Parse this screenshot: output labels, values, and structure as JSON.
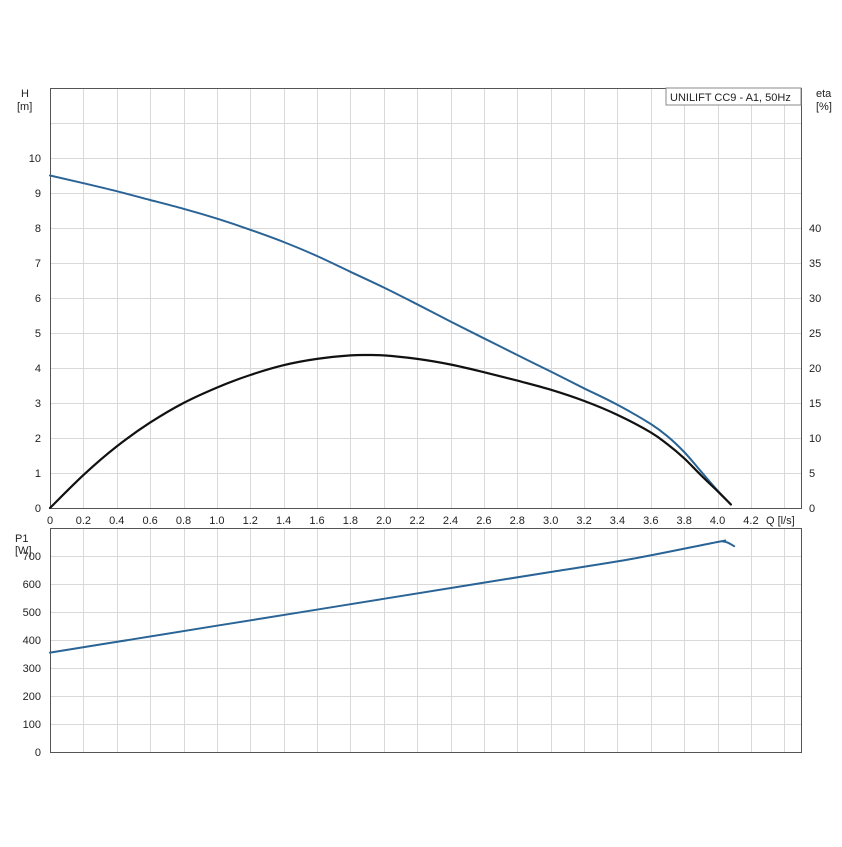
{
  "chart_data": [
    {
      "type": "line",
      "legend": "UNILIFT CC9 - A1, 50Hz",
      "legend_position": "top-right",
      "grid": true,
      "xlabel": "Q [l/s]",
      "xlim": [
        0,
        4.5
      ],
      "x_ticks": [
        "0",
        "0.2",
        "0.4",
        "0.6",
        "0.8",
        "1.0",
        "1.2",
        "1.4",
        "1.6",
        "1.8",
        "2.0",
        "2.2",
        "2.4",
        "2.6",
        "2.8",
        "3.0",
        "3.2",
        "3.4",
        "3.6",
        "3.8",
        "4.0",
        "4.2"
      ],
      "ylabel_left": {
        "name": "H",
        "unit": "[m]"
      },
      "ylim_left": [
        0,
        12
      ],
      "y_ticks_left": [
        "0",
        "1",
        "2",
        "3",
        "4",
        "5",
        "6",
        "7",
        "8",
        "9",
        "10"
      ],
      "ylabel_right": {
        "name": "eta",
        "unit": "[%]"
      },
      "ylim_right": [
        0,
        60
      ],
      "y_ticks_right": [
        "0",
        "5",
        "10",
        "15",
        "20",
        "25",
        "30",
        "35",
        "40"
      ],
      "series": [
        {
          "axis": "left",
          "color": "#2a6496",
          "x": [
            0,
            0.2,
            0.4,
            0.6,
            0.8,
            1.0,
            1.2,
            1.4,
            1.6,
            1.8,
            2.0,
            2.2,
            2.4,
            2.6,
            2.8,
            3.0,
            3.2,
            3.4,
            3.6,
            3.7,
            3.8,
            3.9,
            4.0,
            4.08
          ],
          "y": [
            9.5,
            9.28,
            9.05,
            8.8,
            8.55,
            8.27,
            7.95,
            7.6,
            7.2,
            6.75,
            6.3,
            5.82,
            5.33,
            4.85,
            4.37,
            3.9,
            3.42,
            2.95,
            2.4,
            2.05,
            1.6,
            1.05,
            0.5,
            0.1
          ]
        },
        {
          "axis": "right",
          "color": "#111111",
          "x": [
            0,
            0.2,
            0.4,
            0.6,
            0.8,
            1.0,
            1.2,
            1.4,
            1.6,
            1.8,
            1.9,
            2.0,
            2.2,
            2.4,
            2.6,
            2.8,
            3.0,
            3.2,
            3.4,
            3.6,
            3.7,
            3.8,
            3.9,
            4.0,
            4.08
          ],
          "y": [
            0,
            4.7,
            8.8,
            12.2,
            15.0,
            17.2,
            19.0,
            20.4,
            21.3,
            21.8,
            21.85,
            21.8,
            21.3,
            20.5,
            19.4,
            18.2,
            16.9,
            15.3,
            13.3,
            10.8,
            9.1,
            7.1,
            4.7,
            2.4,
            0.5
          ]
        }
      ]
    },
    {
      "type": "line",
      "grid": true,
      "xlim": [
        0,
        4.5
      ],
      "ylabel": {
        "name": "P1",
        "unit": "[W]"
      },
      "ylim": [
        0,
        800
      ],
      "y_ticks": [
        "0",
        "100",
        "200",
        "300",
        "400",
        "500",
        "600",
        "700"
      ],
      "series": [
        {
          "color": "#2a6496",
          "x": [
            0,
            0.5,
            1.0,
            1.5,
            2.0,
            2.5,
            3.0,
            3.5,
            4.0,
            4.03,
            4.06,
            4.1
          ],
          "y": [
            355,
            403,
            451,
            499,
            547,
            595,
            643,
            691,
            750,
            752,
            748,
            735
          ]
        }
      ]
    }
  ]
}
